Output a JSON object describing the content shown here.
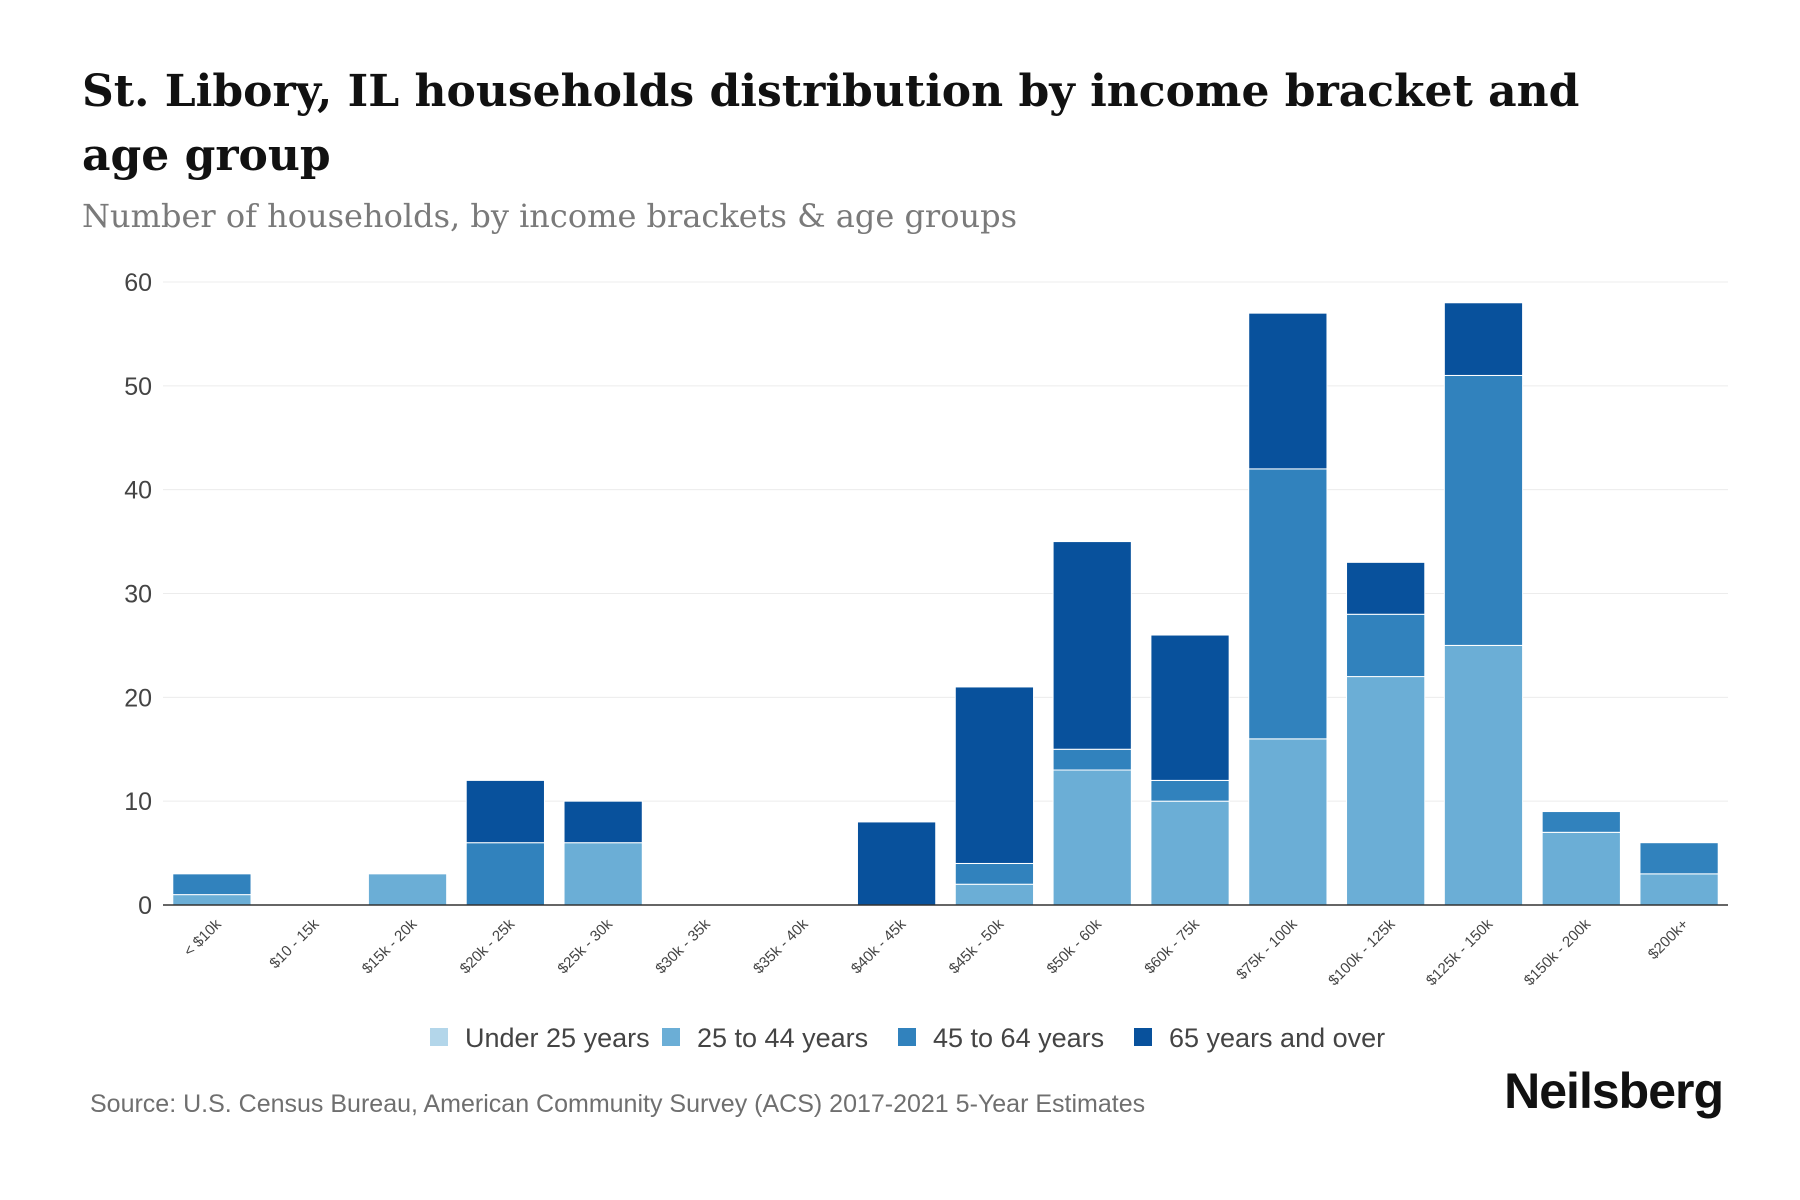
{
  "title": "St. Libory, IL households distribution by income bracket and age group",
  "subtitle": "Number of households, by income brackets & age groups",
  "source": "Source: U.S. Census Bureau, American Community Survey (ACS) 2017-2021 5-Year Estimates",
  "brand": "Neilsberg",
  "chart_data": {
    "type": "bar",
    "stacked": true,
    "categories": [
      "< $10k",
      "$10 - 15k",
      "$15k - 20k",
      "$20k - 25k",
      "$25k - 30k",
      "$30k - 35k",
      "$35k - 40k",
      "$40k - 45k",
      "$45k - 50k",
      "$50k - 60k",
      "$60k - 75k",
      "$75k - 100k",
      "$100k - 125k",
      "$125k - 150k",
      "$150k - 200k",
      "$200k+"
    ],
    "series": [
      {
        "name": "Under 25 years",
        "color": "#b3d6ea",
        "values": [
          0,
          0,
          0,
          0,
          0,
          0,
          0,
          0,
          0,
          0,
          0,
          0,
          0,
          0,
          0,
          0
        ]
      },
      {
        "name": "25 to 44 years",
        "color": "#6baed6",
        "values": [
          1,
          0,
          3,
          0,
          6,
          0,
          0,
          0,
          2,
          13,
          10,
          16,
          22,
          25,
          7,
          3
        ]
      },
      {
        "name": "45 to 64 years",
        "color": "#3182bd",
        "values": [
          2,
          0,
          0,
          6,
          0,
          0,
          0,
          0,
          2,
          2,
          2,
          26,
          6,
          26,
          2,
          3
        ]
      },
      {
        "name": "65 years and over",
        "color": "#08519c",
        "values": [
          0,
          0,
          0,
          6,
          4,
          0,
          0,
          8,
          17,
          20,
          14,
          15,
          5,
          7,
          0,
          0
        ]
      }
    ],
    "yticks": [
      0,
      10,
      20,
      30,
      40,
      50,
      60
    ],
    "ylim": [
      0,
      60
    ],
    "xlabel": "",
    "ylabel": "",
    "legend_position": "bottom-center",
    "grid": true
  }
}
